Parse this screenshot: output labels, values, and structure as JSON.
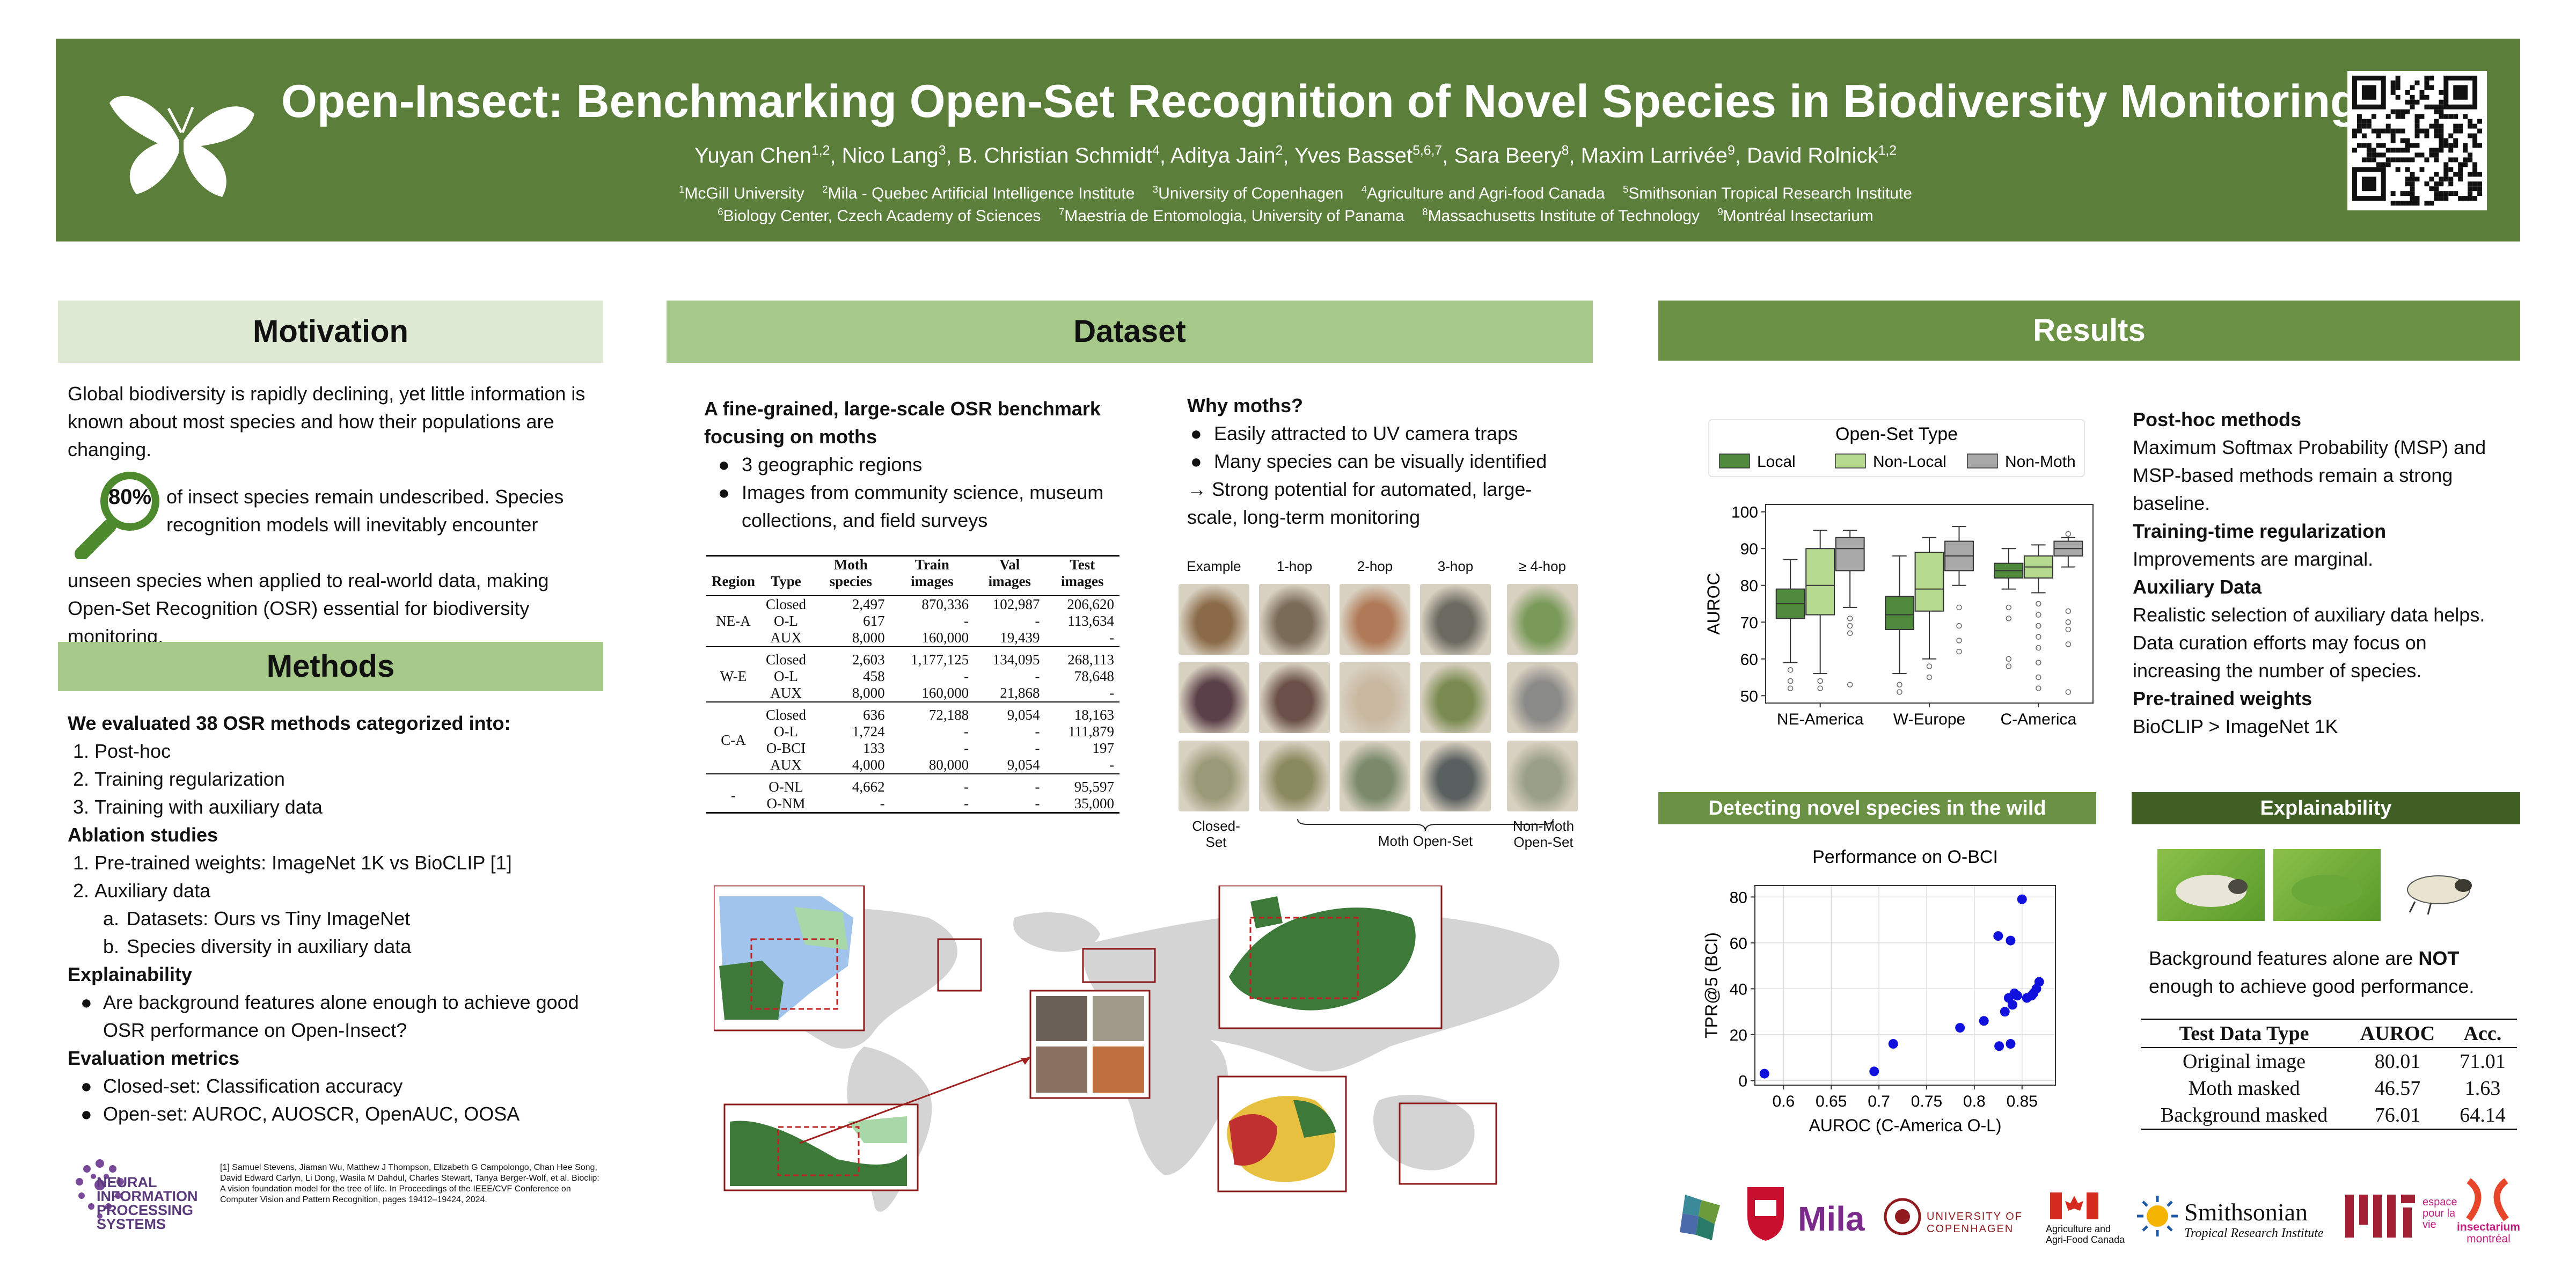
{
  "header": {
    "title": "Open-Insect: Benchmarking Open-Set Recognition of Novel Species in Biodiversity Monitoring",
    "authors": [
      {
        "name": "Yuyan Chen",
        "sup": "1,2"
      },
      {
        "name": "Nico Lang",
        "sup": "3"
      },
      {
        "name": "B. Christian Schmidt",
        "sup": "4"
      },
      {
        "name": "Aditya Jain",
        "sup": "2"
      },
      {
        "name": "Yves Basset",
        "sup": "5,6,7"
      },
      {
        "name": "Sara Beery",
        "sup": "8"
      },
      {
        "name": "Maxim Larrivée",
        "sup": "9"
      },
      {
        "name": "David Rolnick",
        "sup": "1,2"
      }
    ],
    "affiliations_row1": [
      {
        "sup": "1",
        "name": "McGill University"
      },
      {
        "sup": "2",
        "name": "Mila - Quebec Artificial Intelligence Institute"
      },
      {
        "sup": "3",
        "name": "University of Copenhagen"
      },
      {
        "sup": "4",
        "name": "Agriculture and Agri-food Canada"
      },
      {
        "sup": "5",
        "name": "Smithsonian Tropical Research Institute"
      }
    ],
    "affiliations_row2": [
      {
        "sup": "6",
        "name": "Biology Center, Czech Academy of Sciences"
      },
      {
        "sup": "7",
        "name": "Maestria de Entomologia, University of Panama"
      },
      {
        "sup": "8",
        "name": "Massachusetts Institute of Technology"
      },
      {
        "sup": "9",
        "name": "Montréal Insectarium"
      }
    ],
    "logo_icon": "moth-icon",
    "qr_icon": "qr-code-icon"
  },
  "motivation": {
    "heading": "Motivation",
    "p1": "Global biodiversity is rapidly declining, yet little information is known about most species and how their populations are changing.",
    "stat": "80%",
    "p2": "of insect species remain undescribed. Species recognition models will inevitably encounter unseen species when applied to real-world data, making Open-Set Recognition (OSR) essential for biodiversity monitoring."
  },
  "methods": {
    "heading": "Methods",
    "evaluated": "We evaluated 38 OSR methods categorized into:",
    "categories": [
      "Post-hoc",
      "Training regularization",
      "Training with auxiliary data"
    ],
    "ablation_heading": "Ablation studies",
    "ablation_1": "Pre-trained weights: ImageNet 1K vs BioCLIP [1]",
    "ablation_2": "Auxiliary data",
    "ablation_2a": "Datasets: Ours vs Tiny ImageNet",
    "ablation_2b": "Species diversity in auxiliary data",
    "explain_heading": "Explainability",
    "explain_1": "Are background features alone enough to achieve good OSR performance on Open-Insect?",
    "metrics_heading": "Evaluation metrics",
    "metric_1": "Closed-set: Classification accuracy",
    "metric_2": "Open-set: AUROC, AUOSCR, OpenAUC, OOSA"
  },
  "footer": {
    "neurips_lines": [
      "NEURAL",
      "INFORMATION",
      "PROCESSING",
      "SYSTEMS"
    ],
    "reference": "[1] Samuel Stevens, Jiaman Wu, Matthew J Thompson, Elizabeth G Campolongo, Chan Hee Song, David Edward Carlyn, Li Dong, Wasila M Dahdul, Charles Stewart, Tanya Berger-Wolf, et al. Bioclip: A vision foundation model for the tree of life. In Proceedings of the IEEE/CVF Conference on Computer Vision and Pattern Recognition, pages 19412–19424, 2024.",
    "logos": {
      "mila": "Mila",
      "copenhagen": "UNIVERSITY OF COPENHAGEN",
      "agri_1": "Agriculture and",
      "agri_2": "Agri-Food Canada",
      "smithsonian_1": "Smithsonian",
      "smithsonian_2": "Tropical Research Institute",
      "espace_1": "espace",
      "espace_2": "pour la",
      "espace_3": "vie",
      "insectarium_1": "insectarium",
      "insectarium_2": "montréal"
    }
  },
  "dataset": {
    "heading": "Dataset",
    "intro_bold": "A fine-grained, large-scale OSR benchmark focusing on moths",
    "bullet_1": "3 geographic regions",
    "bullet_2": "Images from community science, museum collections, and field surveys",
    "why_heading": "Why moths?",
    "why_1": "Easily attracted to UV camera traps",
    "why_2": "Many species can be visually identified",
    "why_3": "→ Strong potential for automated, large-scale, long-term monitoring",
    "table": {
      "headers": [
        "Region",
        "Type",
        "Moth species",
        "Train images",
        "Val images",
        "Test images"
      ],
      "groups": [
        {
          "region": "NE-A",
          "rows": [
            [
              "Closed",
              "2,497",
              "870,336",
              "102,987",
              "206,620"
            ],
            [
              "O-L",
              "617",
              "-",
              "-",
              "113,634"
            ],
            [
              "AUX",
              "8,000",
              "160,000",
              "19,439",
              "-"
            ]
          ]
        },
        {
          "region": "W-E",
          "rows": [
            [
              "Closed",
              "2,603",
              "1,177,125",
              "134,095",
              "268,113"
            ],
            [
              "O-L",
              "458",
              "-",
              "-",
              "78,648"
            ],
            [
              "AUX",
              "8,000",
              "160,000",
              "21,868",
              "-"
            ]
          ]
        },
        {
          "region": "C-A",
          "rows": [
            [
              "Closed",
              "636",
              "72,188",
              "9,054",
              "18,163"
            ],
            [
              "O-L",
              "1,724",
              "-",
              "-",
              "111,879"
            ],
            [
              "O-BCI",
              "133",
              "-",
              "-",
              "197"
            ],
            [
              "AUX",
              "4,000",
              "80,000",
              "9,054",
              "-"
            ]
          ]
        },
        {
          "region": "-",
          "rows": [
            [
              "O-NL",
              "4,662",
              "-",
              "-",
              "95,597"
            ],
            [
              "O-NM",
              "-",
              "-",
              "-",
              "35,000"
            ]
          ]
        }
      ]
    },
    "grid_cols": [
      "Example",
      "1-hop",
      "2-hop",
      "3-hop",
      "≥ 4-hop"
    ],
    "grid_labels": {
      "closed_1": "Closed-",
      "closed_2": "Set",
      "moth": "Moth Open-Set",
      "nonmoth_1": "Non-Moth",
      "nonmoth_2": "Open-Set"
    },
    "grid_colors": [
      [
        "#8a6a48",
        "#7a6a58",
        "#b07a58",
        "#6a6a60",
        "#7a9a5a"
      ],
      [
        "#5a4048",
        "#6a5048",
        "#c8b8a0",
        "#7a8a50",
        "#8a8a88"
      ],
      [
        "#9a9a78",
        "#8a8a60",
        "#7a8a6a",
        "#5a6060",
        "#9aa088"
      ]
    ],
    "map_icon": "world-map-icon"
  },
  "results": {
    "heading": "Results",
    "posthoc_h": "Post-hoc methods",
    "posthoc_t": "Maximum Softmax Probability (MSP) and MSP-based methods remain a strong baseline.",
    "reg_h": "Training-time regularization",
    "reg_t": "Improvements are marginal.",
    "aux_h": "Auxiliary Data",
    "aux_t": "Realistic selection of auxiliary data helps. Data curation efforts may focus on increasing the number of species.",
    "pre_h": "Pre-trained weights",
    "pre_t": "BioCLIP > ImageNet 1K",
    "detect_heading": "Detecting novel species in the wild",
    "explain_heading": "Explainability",
    "explain_text_1": "Background features alone are ",
    "explain_not": "NOT",
    "explain_text_2": "enough to achieve good performance.",
    "explain_table": {
      "headers": [
        "Test Data Type",
        "AUROC",
        "Acc."
      ],
      "rows": [
        [
          "Original image",
          "80.01",
          "71.01"
        ],
        [
          "Moth masked",
          "46.57",
          "1.63"
        ],
        [
          "Background masked",
          "76.01",
          "64.14"
        ]
      ]
    }
  },
  "chart_data": [
    {
      "type": "box",
      "title": "",
      "legend_title": "Open-Set Type",
      "legend_placement": "top",
      "ylabel": "AUROC",
      "xlabel": "",
      "ylim": [
        48,
        102
      ],
      "yticks": [
        50,
        60,
        70,
        80,
        90,
        100
      ],
      "categories": [
        "NE-America",
        "W-Europe",
        "C-America"
      ],
      "series": [
        {
          "name": "Local",
          "color": "#4f8a3c",
          "boxes": [
            {
              "whislo": 59,
              "q1": 71,
              "med": 75,
              "q3": 79,
              "whishi": 87,
              "fliers": [
                57,
                54,
                52
              ]
            },
            {
              "whislo": 56,
              "q1": 68,
              "med": 72,
              "q3": 77,
              "whishi": 88,
              "fliers": [
                53,
                51
              ]
            },
            {
              "whislo": 79,
              "q1": 82,
              "med": 84,
              "q3": 86,
              "whishi": 90,
              "fliers": [
                74,
                71,
                60,
                58
              ]
            }
          ]
        },
        {
          "name": "Non-Local",
          "color": "#b5d98e",
          "boxes": [
            {
              "whislo": 56,
              "q1": 72,
              "med": 80,
              "q3": 90,
              "whishi": 95,
              "fliers": [
                54,
                52
              ]
            },
            {
              "whislo": 60,
              "q1": 73,
              "med": 79,
              "q3": 89,
              "whishi": 93,
              "fliers": [
                58,
                55
              ]
            },
            {
              "whislo": 78,
              "q1": 82,
              "med": 85,
              "q3": 88,
              "whishi": 91,
              "fliers": [
                75,
                72,
                69,
                66,
                63,
                59,
                55,
                52
              ]
            }
          ]
        },
        {
          "name": "Non-Moth",
          "color": "#a8a8a8",
          "boxes": [
            {
              "whislo": 74,
              "q1": 84,
              "med": 90,
              "q3": 93,
              "whishi": 95,
              "fliers": [
                71,
                69,
                67,
                53
              ]
            },
            {
              "whislo": 80,
              "q1": 84,
              "med": 88,
              "q3": 92,
              "whishi": 96,
              "fliers": [
                74,
                69,
                65,
                62
              ]
            },
            {
              "whislo": 85,
              "q1": 88,
              "med": 90,
              "q3": 92,
              "whishi": 93,
              "fliers": [
                94,
                73,
                70,
                68,
                64,
                51
              ]
            }
          ]
        }
      ]
    },
    {
      "type": "scatter",
      "title": "Performance on O-BCI",
      "xlabel": "AUROC (C-America O-L)",
      "ylabel": "TPR@5 (BCI)",
      "xlim": [
        0.57,
        0.885
      ],
      "ylim": [
        -2,
        85
      ],
      "xticks": [
        "0.6",
        "0.65",
        "0.7",
        "0.75",
        "0.8",
        "0.85"
      ],
      "xtick_values": [
        0.6,
        0.65,
        0.7,
        0.75,
        0.8,
        0.85
      ],
      "yticks": [
        0,
        20,
        40,
        60,
        80
      ],
      "color": "#1111dd",
      "points": [
        [
          0.58,
          3
        ],
        [
          0.695,
          4
        ],
        [
          0.715,
          16
        ],
        [
          0.785,
          23
        ],
        [
          0.81,
          26
        ],
        [
          0.825,
          63
        ],
        [
          0.838,
          61
        ],
        [
          0.826,
          15
        ],
        [
          0.838,
          16
        ],
        [
          0.832,
          30
        ],
        [
          0.836,
          36
        ],
        [
          0.84,
          33
        ],
        [
          0.845,
          37
        ],
        [
          0.85,
          79
        ],
        [
          0.855,
          36
        ],
        [
          0.86,
          37
        ],
        [
          0.865,
          40
        ],
        [
          0.868,
          43
        ],
        [
          0.862,
          38
        ],
        [
          0.842,
          38
        ]
      ]
    }
  ]
}
